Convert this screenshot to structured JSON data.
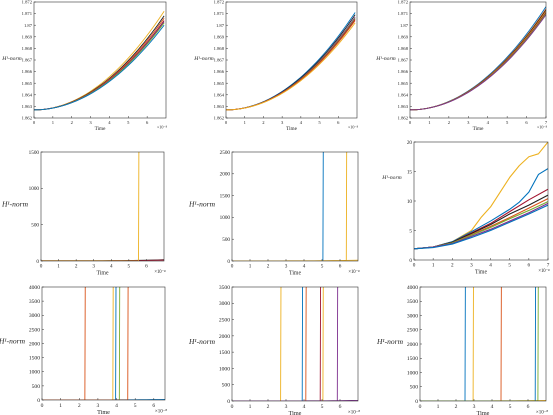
{
  "figure": {
    "colors": [
      "#0072BD",
      "#D95319",
      "#EDB120",
      "#7E2F8E",
      "#77AC30",
      "#A2142F",
      "#1f1f1f"
    ]
  },
  "chart_data": [
    {
      "type": "line",
      "xlabel": "Time",
      "ylabel": "H¹-norm",
      "x_multiplier": "×10⁻⁸",
      "xlim": [
        0,
        7
      ],
      "ylim": [
        1.862,
        1.872
      ],
      "xticks": [
        0,
        1,
        2,
        3,
        4,
        5,
        6
      ],
      "yticks": [
        1.862,
        1.863,
        1.864,
        1.865,
        1.866,
        1.867,
        1.868,
        1.869,
        1.87,
        1.871,
        1.872
      ],
      "ytick_labels": [
        "1.862",
        "1.863",
        "1.864",
        "1.865",
        "1.866",
        "1.867",
        "1.868",
        "1.869",
        "1.87",
        "1.871",
        "1.872"
      ],
      "grid": false,
      "series": [
        {
          "color_index": 2,
          "shape": "quad",
          "x_end": 6.9,
          "start": 1.8627,
          "end": 1.8712
        },
        {
          "color_index": 6,
          "shape": "quad",
          "x_end": 6.9,
          "start": 1.8627,
          "end": 1.8708
        },
        {
          "color_index": 1,
          "shape": "quad",
          "x_end": 6.9,
          "start": 1.8627,
          "end": 1.8706
        },
        {
          "color_index": 5,
          "shape": "quad",
          "x_end": 6.9,
          "start": 1.8627,
          "end": 1.8704
        },
        {
          "color_index": 3,
          "shape": "quad",
          "x_end": 6.9,
          "start": 1.8627,
          "end": 1.8703
        },
        {
          "color_index": 4,
          "shape": "quad",
          "x_end": 6.9,
          "start": 1.8627,
          "end": 1.8702
        },
        {
          "color_index": 0,
          "shape": "quad",
          "x_end": 6.9,
          "start": 1.8627,
          "end": 1.87
        }
      ]
    },
    {
      "type": "line",
      "xlabel": "Time",
      "ylabel": "H¹-norm",
      "x_multiplier": "×10⁻⁸",
      "xlim": [
        0,
        7
      ],
      "ylim": [
        1.862,
        1.872
      ],
      "xticks": [
        0,
        1,
        2,
        3,
        4,
        5,
        6
      ],
      "yticks": [
        1.862,
        1.863,
        1.864,
        1.865,
        1.866,
        1.867,
        1.868,
        1.869,
        1.87,
        1.871,
        1.872
      ],
      "ytick_labels": [
        "1.862",
        "1.863",
        "1.864",
        "1.865",
        "1.866",
        "1.867",
        "1.868",
        "1.869",
        "1.87",
        "1.871",
        "1.872"
      ],
      "grid": false,
      "series": [
        {
          "color_index": 0,
          "shape": "quad",
          "x_end": 6.9,
          "start": 1.8627,
          "end": 1.8711
        },
        {
          "color_index": 6,
          "shape": "quad",
          "x_end": 6.9,
          "start": 1.8627,
          "end": 1.8709
        },
        {
          "color_index": 3,
          "shape": "quad",
          "x_end": 6.9,
          "start": 1.8627,
          "end": 1.8707
        },
        {
          "color_index": 4,
          "shape": "quad",
          "x_end": 6.9,
          "start": 1.8627,
          "end": 1.8706
        },
        {
          "color_index": 5,
          "shape": "quad",
          "x_end": 6.9,
          "start": 1.8627,
          "end": 1.8705
        },
        {
          "color_index": 1,
          "shape": "quad",
          "x_end": 6.9,
          "start": 1.8627,
          "end": 1.8704
        },
        {
          "color_index": 2,
          "shape": "quad",
          "x_end": 6.9,
          "start": 1.8627,
          "end": 1.8702
        }
      ]
    },
    {
      "type": "line",
      "xlabel": "Time",
      "ylabel": "H¹-norm",
      "x_multiplier": "×10⁻⁸",
      "xlim": [
        0,
        7
      ],
      "ylim": [
        1.862,
        1.872
      ],
      "xticks": [
        0,
        1,
        2,
        3,
        4,
        5,
        6,
        7
      ],
      "yticks": [
        1.862,
        1.863,
        1.864,
        1.865,
        1.866,
        1.867,
        1.868,
        1.869,
        1.87,
        1.871,
        1.872
      ],
      "ytick_labels": [
        "1.862",
        "1.863",
        "1.864",
        "1.865",
        "1.866",
        "1.867",
        "1.868",
        "1.869",
        "1.87",
        "1.871",
        "1.872"
      ],
      "grid": false,
      "series": [
        {
          "color_index": 0,
          "shape": "quad",
          "x_end": 7,
          "start": 1.8627,
          "end": 1.8716
        },
        {
          "color_index": 1,
          "shape": "quad",
          "x_end": 7,
          "start": 1.8627,
          "end": 1.8714
        },
        {
          "color_index": 6,
          "shape": "quad",
          "x_end": 7,
          "start": 1.8627,
          "end": 1.8713
        },
        {
          "color_index": 2,
          "shape": "quad",
          "x_end": 7,
          "start": 1.8627,
          "end": 1.8712
        },
        {
          "color_index": 5,
          "shape": "quad",
          "x_end": 7,
          "start": 1.8627,
          "end": 1.8711
        },
        {
          "color_index": 4,
          "shape": "quad",
          "x_end": 7,
          "start": 1.8627,
          "end": 1.871
        },
        {
          "color_index": 3,
          "shape": "quad",
          "x_end": 7,
          "start": 1.8627,
          "end": 1.8709
        }
      ]
    },
    {
      "type": "line",
      "xlabel": "Time",
      "ylabel": "H¹-norm",
      "x_multiplier": "×10⁻⁸",
      "xlim": [
        0,
        7
      ],
      "ylim": [
        0,
        1500
      ],
      "xticks": [
        0,
        1,
        2,
        3,
        4,
        5,
        6
      ],
      "yticks": [
        0,
        500,
        1000,
        1500
      ],
      "ytick_labels": [
        "0",
        "500",
        "1000",
        "1500"
      ],
      "grid": false,
      "series": [
        {
          "color_index": 6,
          "shape": "flat",
          "x_end": 7,
          "start": 2,
          "end": 18
        },
        {
          "color_index": 5,
          "shape": "flat",
          "x_end": 7,
          "start": 2,
          "end": 12
        },
        {
          "color_index": 2,
          "shape": "spike",
          "x_spike": 5.55,
          "start": 2,
          "end": 1500
        }
      ]
    },
    {
      "type": "line",
      "xlabel": "Time",
      "ylabel": "H¹-norm",
      "x_multiplier": "×10⁻⁸",
      "xlim": [
        0,
        7
      ],
      "ylim": [
        0,
        2500
      ],
      "xticks": [
        0,
        1,
        2,
        3,
        4,
        5,
        6
      ],
      "yticks": [
        0,
        500,
        1000,
        1500,
        2000,
        2500
      ],
      "ytick_labels": [
        "0",
        "500",
        "1000",
        "1500",
        "2000",
        "2500"
      ],
      "grid": false,
      "series": [
        {
          "color_index": 2,
          "shape": "flat",
          "x_end": 7,
          "start": 2,
          "end": 18
        },
        {
          "color_index": 0,
          "shape": "spike",
          "x_spike": 5.05,
          "start": 2,
          "end": 2500
        },
        {
          "color_index": 2,
          "shape": "spike",
          "x_spike": 6.35,
          "start": 2,
          "end": 2500
        }
      ]
    },
    {
      "type": "line",
      "xlabel": "Time",
      "ylabel": "H¹-norm",
      "x_multiplier": "×10⁻⁸",
      "xlim": [
        0,
        7
      ],
      "ylim": [
        0,
        20
      ],
      "xticks": [
        0,
        1,
        2,
        3,
        4,
        5,
        6,
        7
      ],
      "yticks": [
        0,
        5,
        10,
        15,
        20
      ],
      "ytick_labels": [
        "0",
        "5",
        "10",
        "15",
        "20"
      ],
      "grid": false,
      "series": [
        {
          "color_index": 2,
          "shape": "points",
          "x": [
            0,
            1,
            2,
            3,
            3.5,
            4,
            4.5,
            5,
            5.5,
            6,
            6.5,
            7
          ],
          "y": [
            1.9,
            2.2,
            3.1,
            5.0,
            7.2,
            9.0,
            11.5,
            14.0,
            16.0,
            17.5,
            18.0,
            20.0
          ]
        },
        {
          "color_index": 0,
          "shape": "points",
          "x": [
            0,
            1,
            2,
            3,
            4,
            5,
            5.5,
            6,
            6.5,
            7
          ],
          "y": [
            1.9,
            2.2,
            3.1,
            4.8,
            6.6,
            8.6,
            9.8,
            11.5,
            14.5,
            15.5
          ]
        },
        {
          "color_index": 5,
          "shape": "points",
          "x": [
            0,
            1,
            2,
            3,
            4,
            5,
            6,
            7
          ],
          "y": [
            1.9,
            2.2,
            3.0,
            4.6,
            6.2,
            8.2,
            10.2,
            12.0
          ]
        },
        {
          "color_index": 6,
          "shape": "points",
          "x": [
            0,
            1,
            2,
            3,
            4,
            5,
            6,
            7
          ],
          "y": [
            1.9,
            2.2,
            3.0,
            4.5,
            6.0,
            7.8,
            9.3,
            11.0
          ]
        },
        {
          "color_index": 1,
          "shape": "points",
          "x": [
            0,
            1,
            2,
            3,
            4,
            5,
            6,
            7
          ],
          "y": [
            1.9,
            2.2,
            2.9,
            4.3,
            5.7,
            7.2,
            8.8,
            10.4
          ]
        },
        {
          "color_index": 4,
          "shape": "points",
          "x": [
            0,
            1,
            2,
            3,
            4,
            5,
            6,
            7
          ],
          "y": [
            1.9,
            2.2,
            2.9,
            4.2,
            5.5,
            7.0,
            8.4,
            9.9
          ]
        },
        {
          "color_index": 3,
          "shape": "points",
          "x": [
            0,
            1,
            2,
            3,
            4,
            5,
            6,
            7
          ],
          "y": [
            1.9,
            2.2,
            2.8,
            4.0,
            5.2,
            6.6,
            8.0,
            9.6
          ]
        },
        {
          "color_index": 0,
          "shape": "points",
          "x": [
            0,
            1,
            2,
            3,
            4,
            5,
            6,
            7
          ],
          "y": [
            1.9,
            2.1,
            2.7,
            3.8,
            5.0,
            6.4,
            7.8,
            9.3
          ]
        }
      ]
    },
    {
      "type": "line",
      "xlabel": "Time",
      "ylabel": "H¹-norm",
      "x_multiplier": "×10⁻⁸",
      "xlim": [
        0,
        6.6
      ],
      "ylim": [
        0,
        4000
      ],
      "xticks": [
        0,
        1,
        2,
        3,
        4,
        5,
        6
      ],
      "yticks": [
        0,
        500,
        1000,
        1500,
        2000,
        2500,
        3000,
        3500,
        4000
      ],
      "ytick_labels": [
        "0",
        "500",
        "1000",
        "1500",
        "2000",
        "2500",
        "3000",
        "3500",
        "4000"
      ],
      "grid": false,
      "series": [
        {
          "color_index": 0,
          "shape": "flat",
          "x_end": 6.6,
          "start": 2,
          "end": 20
        },
        {
          "color_index": 1,
          "shape": "spike",
          "x_spike": 2.3,
          "start": 2,
          "end": 4000
        },
        {
          "color_index": 2,
          "shape": "spike",
          "x_spike": 3.8,
          "start": 2,
          "end": 4000
        },
        {
          "color_index": 0,
          "shape": "spike",
          "x_spike": 3.95,
          "start": 2,
          "end": 4000
        },
        {
          "color_index": 4,
          "shape": "spike",
          "x_spike": 4.15,
          "start": 2,
          "end": 4000
        },
        {
          "color_index": 1,
          "shape": "spike",
          "x_spike": 4.6,
          "start": 2,
          "end": 4000
        }
      ]
    },
    {
      "type": "line",
      "xlabel": "Time",
      "ylabel": "H¹-norm",
      "x_multiplier": "×10⁻⁸",
      "xlim": [
        0,
        7
      ],
      "ylim": [
        0,
        3500
      ],
      "xticks": [
        0,
        1,
        2,
        3,
        4,
        5,
        6
      ],
      "yticks": [
        0,
        500,
        1000,
        1500,
        2000,
        2500,
        3000,
        3500
      ],
      "ytick_labels": [
        "0",
        "500",
        "1000",
        "1500",
        "2000",
        "2500",
        "3000",
        "3500"
      ],
      "grid": false,
      "series": [
        {
          "color_index": 3,
          "shape": "flat",
          "x_end": 7,
          "start": 2,
          "end": 18
        },
        {
          "color_index": 2,
          "shape": "spike",
          "x_spike": 2.7,
          "start": 2,
          "end": 3500
        },
        {
          "color_index": 0,
          "shape": "spike",
          "x_spike": 3.9,
          "start": 2,
          "end": 3500
        },
        {
          "color_index": 1,
          "shape": "spike",
          "x_spike": 4.1,
          "start": 2,
          "end": 3500
        },
        {
          "color_index": 5,
          "shape": "spike",
          "x_spike": 4.9,
          "start": 2,
          "end": 3500
        },
        {
          "color_index": 2,
          "shape": "spike",
          "x_spike": 5.05,
          "start": 2,
          "end": 3500
        },
        {
          "color_index": 3,
          "shape": "spike",
          "x_spike": 5.85,
          "start": 2,
          "end": 3500
        }
      ]
    },
    {
      "type": "line",
      "xlabel": "Time",
      "ylabel": "H¹-norm",
      "x_multiplier": "×10⁻⁸",
      "xlim": [
        0,
        7
      ],
      "ylim": [
        0,
        4000
      ],
      "xticks": [
        0,
        1,
        2,
        3,
        4,
        5,
        6
      ],
      "yticks": [
        0,
        500,
        1000,
        1500,
        2000,
        2500,
        3000,
        3500,
        4000
      ],
      "ytick_labels": [
        "0",
        "500",
        "1000",
        "1500",
        "2000",
        "2500",
        "3000",
        "3500",
        "4000"
      ],
      "grid": false,
      "series": [
        {
          "color_index": 2,
          "shape": "flat",
          "x_end": 7,
          "start": 2,
          "end": 20
        },
        {
          "color_index": 0,
          "shape": "spike",
          "x_spike": 2.5,
          "start": 2,
          "end": 4000
        },
        {
          "color_index": 2,
          "shape": "spike",
          "x_spike": 2.95,
          "start": 2,
          "end": 4000
        },
        {
          "color_index": 1,
          "shape": "spike",
          "x_spike": 4.5,
          "start": 2,
          "end": 4000
        },
        {
          "color_index": 0,
          "shape": "spike",
          "x_spike": 6.4,
          "start": 2,
          "end": 4000
        },
        {
          "color_index": 4,
          "shape": "spike",
          "x_spike": 6.55,
          "start": 2,
          "end": 4000
        }
      ]
    }
  ]
}
